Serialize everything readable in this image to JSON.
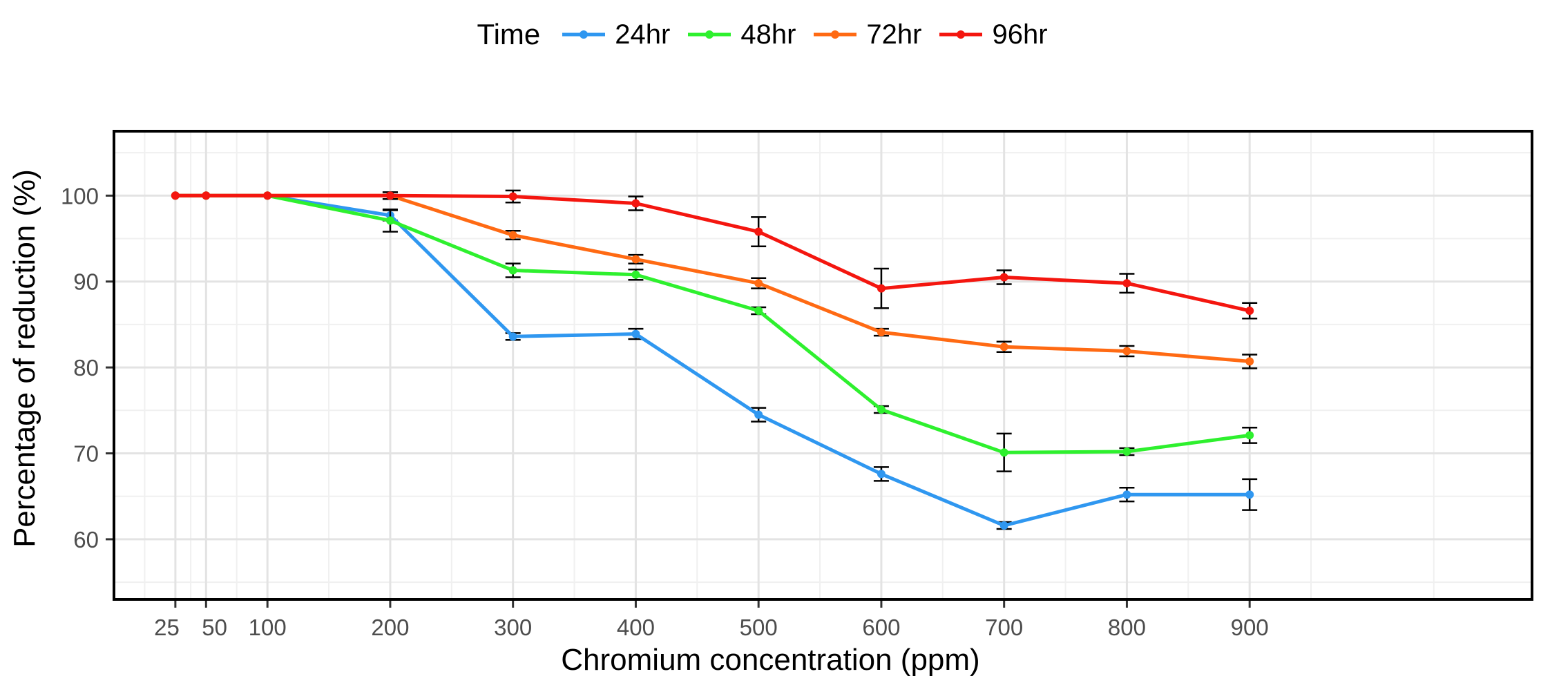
{
  "chart_data": {
    "type": "line",
    "title": "",
    "xlabel": "Chromium concentration (ppm)",
    "ylabel": "Percentage of reduction (%)",
    "legend_title": "Time",
    "legend_position": "top",
    "grid": true,
    "x": [
      25,
      50,
      100,
      200,
      300,
      400,
      500,
      600,
      700,
      800,
      900
    ],
    "x_ticks": [
      25,
      50,
      100,
      200,
      300,
      400,
      500,
      600,
      700,
      800,
      900
    ],
    "x_tick_labels": [
      "25",
      "50",
      "100",
      "200",
      "300",
      "400",
      "500",
      "600",
      "700",
      "800",
      "900"
    ],
    "xlim": [
      -25,
      1130
    ],
    "y_ticks": [
      60,
      70,
      80,
      90,
      100
    ],
    "y_tick_labels": [
      "60",
      "70",
      "80",
      "90",
      "100"
    ],
    "ylim": [
      53,
      107.5
    ],
    "series": [
      {
        "name": "24hr",
        "color": "#2f97f0",
        "values": [
          100,
          100,
          100,
          97.7,
          83.6,
          83.9,
          74.5,
          67.6,
          61.6,
          65.2,
          65.2
        ],
        "errors": [
          0,
          0,
          0,
          0.6,
          0.4,
          0.6,
          0.8,
          0.8,
          0.4,
          0.8,
          1.8
        ]
      },
      {
        "name": "48hr",
        "color": "#2ef02e",
        "values": [
          100,
          100,
          100,
          97.1,
          91.3,
          90.8,
          86.6,
          75.1,
          70.1,
          70.2,
          72.1
        ],
        "errors": [
          0,
          0,
          0,
          1.3,
          0.8,
          0.6,
          0.4,
          0.4,
          2.2,
          0.4,
          0.9
        ]
      },
      {
        "name": "72hr",
        "color": "#ff6a13",
        "values": [
          100,
          100,
          100,
          100,
          95.4,
          92.6,
          89.8,
          84.1,
          82.4,
          81.9,
          80.7
        ],
        "errors": [
          0,
          0,
          0,
          0.4,
          0.5,
          0.5,
          0.6,
          0.4,
          0.6,
          0.6,
          0.8
        ]
      },
      {
        "name": "96hr",
        "color": "#f4160f",
        "values": [
          100,
          100,
          100,
          100,
          99.9,
          99.1,
          95.8,
          89.2,
          90.5,
          89.8,
          86.6
        ],
        "errors": [
          0,
          0,
          0,
          0.4,
          0.7,
          0.8,
          1.7,
          2.3,
          0.8,
          1.1,
          0.9
        ]
      }
    ]
  }
}
